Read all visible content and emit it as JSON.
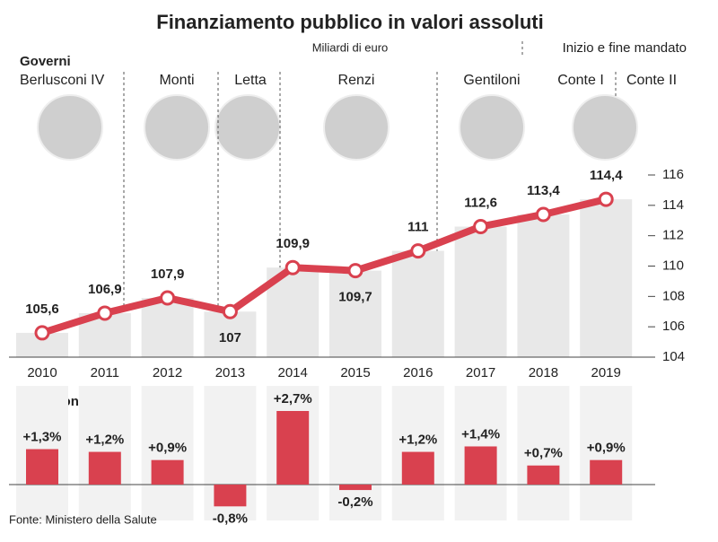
{
  "title": "Finanziamento pubblico in valori assoluti",
  "subtitle": "Miliardi di euro",
  "legend_note": "Inizio e fine mandato",
  "governments_label": "Governi",
  "governments": [
    "Berlusconi IV",
    "Monti",
    "Letta",
    "Renzi",
    "Gentiloni",
    "Conte I",
    "Conte II"
  ],
  "source": "Fonte: Ministero della Salute",
  "chart_data": [
    {
      "type": "line",
      "categories": [
        "2010",
        "2011",
        "2012",
        "2013",
        "2014",
        "2015",
        "2016",
        "2017",
        "2018",
        "2019"
      ],
      "values": [
        105.6,
        106.9,
        107.9,
        107,
        109.9,
        109.7,
        111,
        112.6,
        113.4,
        114.4
      ],
      "value_labels": [
        "105,6",
        "106,9",
        "107,9",
        "107",
        "109,9",
        "109,7",
        "111",
        "112,6",
        "113,4",
        "114,4"
      ],
      "color": "#d9414f",
      "bar_color": "#e8e8e8",
      "ylim": [
        104,
        116
      ],
      "yticks": [
        104,
        106,
        108,
        110,
        112,
        114,
        116
      ]
    },
    {
      "type": "bar",
      "title": "Variazione %",
      "values": [
        1.3,
        1.2,
        0.9,
        -0.8,
        2.7,
        -0.2,
        1.2,
        1.4,
        0.7,
        0.9
      ],
      "value_labels": [
        "+1,3%",
        "+1,2%",
        "+0,9%",
        "-0,8%",
        "+2,7%",
        "-0,2%",
        "+1,2%",
        "+1,4%",
        "+0,7%",
        "+0,9%"
      ],
      "color": "#d9414f"
    }
  ]
}
